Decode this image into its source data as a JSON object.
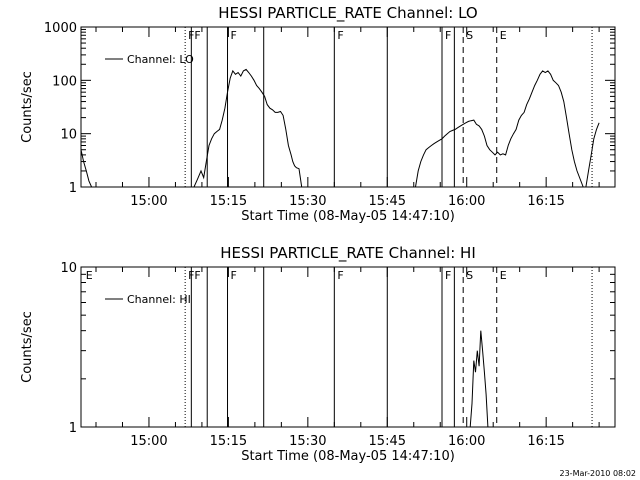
{
  "timestamp": "23-Mar-2010 08:02",
  "chart_data": [
    {
      "type": "line",
      "title": "HESSI PARTICLE_RATE Channel: LO",
      "xlabel": "Start Time (08-May-05 14:47:10)",
      "ylabel": "Counts/sec",
      "yscale": "log",
      "ylim": [
        1,
        1000
      ],
      "xlim": [
        "14:47:10",
        "16:28:00"
      ],
      "yticks": [
        "1",
        "10",
        "100",
        "1000"
      ],
      "xticks": [
        "15:00",
        "15:15",
        "15:30",
        "15:45",
        "16:00",
        "16:15"
      ],
      "grid": false,
      "legend": {
        "position": "top-left",
        "entries": [
          "Channel: LO"
        ]
      },
      "series": [
        {
          "name": "Channel: LO",
          "x": [
            "14:47:10",
            "14:47:40",
            "14:48:10",
            "14:48:40",
            "14:49:10",
            "15:08:30",
            "15:09:10",
            "15:09:50",
            "15:10:20",
            "15:10:50",
            "15:11:20",
            "15:11:50",
            "15:12:20",
            "15:12:50",
            "15:13:20",
            "15:13:50",
            "15:14:20",
            "15:14:50",
            "15:15:20",
            "15:15:50",
            "15:16:20",
            "15:16:50",
            "15:17:20",
            "15:17:50",
            "15:18:20",
            "15:18:50",
            "15:19:20",
            "15:19:50",
            "15:20:20",
            "15:20:50",
            "15:21:20",
            "15:21:50",
            "15:22:20",
            "15:22:50",
            "15:23:20",
            "15:23:50",
            "15:24:20",
            "15:24:50",
            "15:25:20",
            "15:25:50",
            "15:26:20",
            "15:26:50",
            "15:27:10",
            "15:27:30",
            "15:27:50",
            "15:28:20",
            "15:28:50",
            "15:50:20",
            "15:50:50",
            "15:51:20",
            "15:51:50",
            "15:52:20",
            "15:52:50",
            "15:53:20",
            "15:53:50",
            "15:54:20",
            "15:54:50",
            "15:55:20",
            "15:55:50",
            "15:56:20",
            "15:56:50",
            "15:57:20",
            "15:57:50",
            "15:58:20",
            "15:58:50",
            "15:59:20",
            "15:59:50",
            "16:00:20",
            "16:00:50",
            "16:01:20",
            "16:01:50",
            "16:02:20",
            "16:02:50",
            "16:03:20",
            "16:03:50",
            "16:04:20",
            "16:04:50",
            "16:05:20",
            "16:05:50",
            "16:06:20",
            "16:06:50",
            "16:07:20",
            "16:07:50",
            "16:08:20",
            "16:08:50",
            "16:09:20",
            "16:09:50",
            "16:10:20",
            "16:10:50",
            "16:11:20",
            "16:11:50",
            "16:12:20",
            "16:12:50",
            "16:13:20",
            "16:13:50",
            "16:14:20",
            "16:14:50",
            "16:15:20",
            "16:15:50",
            "16:16:20",
            "16:16:50",
            "16:17:20",
            "16:17:50",
            "16:18:20",
            "16:18:50",
            "16:19:20",
            "16:19:50",
            "16:20:20",
            "16:20:50",
            "16:22:00",
            "16:22:30",
            "16:23:00",
            "16:23:30",
            "16:24:00",
            "16:24:30",
            "16:25:00"
          ],
          "y": [
            5.0,
            3.0,
            2.0,
            1.3,
            1.0,
            1.0,
            1.4,
            2.0,
            1.5,
            3.0,
            6.0,
            8.0,
            10.0,
            11.0,
            12.0,
            18.0,
            30.0,
            60.0,
            110.0,
            150.0,
            130.0,
            140.0,
            120.0,
            150.0,
            160.0,
            140.0,
            120.0,
            100.0,
            80.0,
            70.0,
            60.0,
            50.0,
            35.0,
            30.0,
            28.0,
            25.0,
            25.0,
            26.0,
            22.0,
            12.0,
            6.0,
            4.0,
            3.0,
            2.5,
            2.3,
            2.2,
            1.0,
            1.0,
            2.0,
            3.0,
            4.0,
            5.0,
            5.5,
            6.0,
            6.5,
            7.0,
            7.5,
            8.0,
            9.0,
            10.0,
            11.0,
            11.5,
            12.0,
            13.0,
            14.0,
            15.0,
            16.0,
            17.0,
            17.5,
            18.0,
            15.0,
            14.0,
            12.0,
            9.0,
            6.0,
            5.0,
            4.5,
            4.0,
            4.5,
            4.0,
            4.2,
            4.0,
            6.0,
            8.0,
            10.0,
            12.0,
            18.0,
            22.0,
            25.0,
            35.0,
            45.0,
            60.0,
            80.0,
            100.0,
            130.0,
            150.0,
            140.0,
            150.0,
            130.0,
            100.0,
            90.0,
            80.0,
            60.0,
            40.0,
            20.0,
            10.0,
            5.0,
            3.0,
            2.0,
            1.0,
            1.0,
            2.0,
            4.0,
            8.0,
            12.0,
            16.0
          ]
        }
      ],
      "flags": [
        {
          "label": "F",
          "time": "15:06:50",
          "style": "dotted"
        },
        {
          "label": "F",
          "time": "15:08:00",
          "style": "solid"
        },
        {
          "label": "",
          "time": "15:11:00",
          "style": "solid"
        },
        {
          "label": "F",
          "time": "15:14:50",
          "style": "solid"
        },
        {
          "label": "",
          "time": "15:21:40",
          "style": "solid"
        },
        {
          "label": "F",
          "time": "15:35:00",
          "style": "solid"
        },
        {
          "label": "",
          "time": "15:45:00",
          "style": "solid"
        },
        {
          "label": "F",
          "time": "15:55:20",
          "style": "solid"
        },
        {
          "label": "",
          "time": "15:57:40",
          "style": "solid"
        },
        {
          "label": "S",
          "time": "15:59:20",
          "style": "dashed"
        },
        {
          "label": "E",
          "time": "16:05:40",
          "style": "dashed"
        },
        {
          "label": "",
          "time": "16:23:40",
          "style": "dotted"
        }
      ]
    },
    {
      "type": "line",
      "title": "HESSI PARTICLE_RATE Channel: HI",
      "xlabel": "Start Time (08-May-05 14:47:10)",
      "ylabel": "Counts/sec",
      "yscale": "log",
      "ylim": [
        1,
        10
      ],
      "xlim": [
        "14:47:10",
        "16:28:00"
      ],
      "yticks": [
        "1",
        "10"
      ],
      "xticks": [
        "15:00",
        "15:15",
        "15:30",
        "15:45",
        "16:00",
        "16:15"
      ],
      "grid": false,
      "legend": {
        "position": "top-left",
        "entries": [
          "Channel: HI"
        ]
      },
      "series": [
        {
          "name": "Channel: HI",
          "x": [
            "16:00:40",
            "16:01:00",
            "16:01:20",
            "16:01:40",
            "16:02:00",
            "16:02:20",
            "16:02:40",
            "16:03:00",
            "16:03:20",
            "16:03:40",
            "16:04:00"
          ],
          "y": [
            1.0,
            1.4,
            2.6,
            2.2,
            3.0,
            2.4,
            4.0,
            3.0,
            2.2,
            1.6,
            1.0
          ]
        }
      ],
      "flags": [
        {
          "label": "E",
          "time": "14:47:30",
          "style": "none"
        },
        {
          "label": "F",
          "time": "15:06:50",
          "style": "dotted"
        },
        {
          "label": "F",
          "time": "15:08:00",
          "style": "solid"
        },
        {
          "label": "",
          "time": "15:11:00",
          "style": "solid"
        },
        {
          "label": "F",
          "time": "15:14:50",
          "style": "solid"
        },
        {
          "label": "",
          "time": "15:21:40",
          "style": "solid"
        },
        {
          "label": "F",
          "time": "15:35:00",
          "style": "solid"
        },
        {
          "label": "",
          "time": "15:45:00",
          "style": "solid"
        },
        {
          "label": "F",
          "time": "15:55:20",
          "style": "solid"
        },
        {
          "label": "",
          "time": "15:57:40",
          "style": "solid"
        },
        {
          "label": "S",
          "time": "15:59:20",
          "style": "dashed"
        },
        {
          "label": "E",
          "time": "16:05:40",
          "style": "dashed"
        },
        {
          "label": "",
          "time": "16:23:40",
          "style": "dotted"
        }
      ]
    }
  ]
}
